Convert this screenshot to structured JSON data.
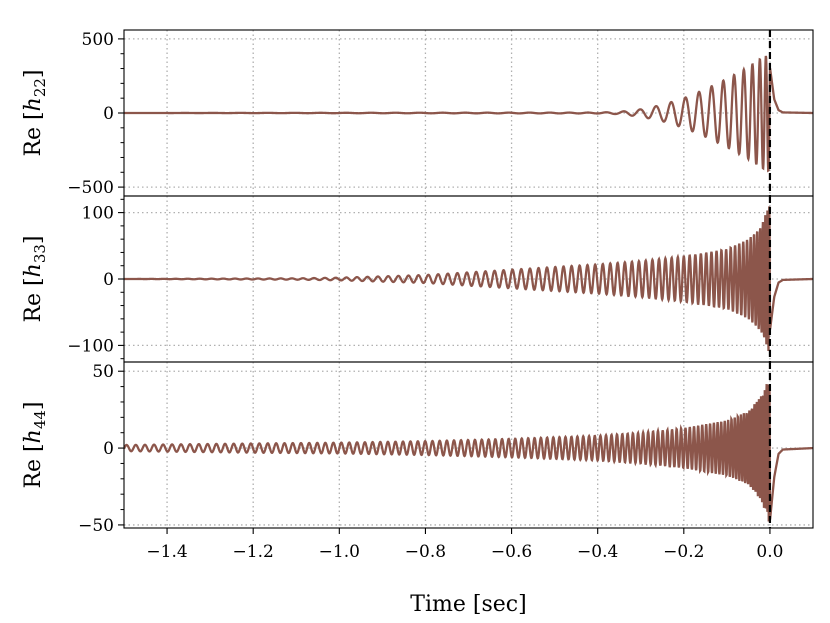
{
  "chart_data": [
    {
      "type": "line",
      "ylabel_prefix": "Re [",
      "ylabel_var": "h",
      "ylabel_sub": "22",
      "ylabel_suffix": "]",
      "ylim": [
        -560,
        560
      ],
      "yticks": [
        -500,
        0,
        500
      ],
      "ytick_labels": [
        "−500",
        "0",
        "500"
      ],
      "xlim": [
        -1.5,
        0.1
      ],
      "grid": true,
      "series": [
        {
          "color": "#8c564b",
          "x": [
            -1.5,
            -0.4,
            -0.35,
            -0.3,
            -0.25,
            -0.2,
            -0.15,
            -0.1,
            -0.05,
            -0.02,
            0.0,
            0.01,
            0.02,
            0.03,
            0.1
          ],
          "envelope": [
            0,
            3,
            8,
            25,
            55,
            100,
            160,
            230,
            310,
            370,
            400,
            120,
            25,
            5,
            0
          ],
          "phase_cycles": 35
        }
      ]
    },
    {
      "type": "line",
      "ylabel_prefix": "Re [",
      "ylabel_var": "h",
      "ylabel_sub": "33",
      "ylabel_suffix": "]",
      "ylim": [
        -125,
        125
      ],
      "yticks": [
        -100,
        0,
        100
      ],
      "ytick_labels": [
        "−100",
        "0",
        "100"
      ],
      "xlim": [
        -1.5,
        0.1
      ],
      "grid": true,
      "series": [
        {
          "color": "#8c564b",
          "x": [
            -1.5,
            -1.1,
            -1.0,
            -0.9,
            -0.8,
            -0.7,
            -0.6,
            -0.5,
            -0.4,
            -0.3,
            -0.2,
            -0.1,
            -0.05,
            -0.02,
            0.0,
            0.01,
            0.02,
            0.03,
            0.1
          ],
          "envelope": [
            0,
            1,
            2,
            4,
            6,
            10,
            14,
            18,
            22,
            27,
            34,
            45,
            60,
            80,
            115,
            40,
            8,
            2,
            0
          ],
          "phase_cycles": 83
        }
      ]
    },
    {
      "type": "line",
      "ylabel_prefix": "Re [",
      "ylabel_var": "h",
      "ylabel_sub": "44",
      "ylabel_suffix": "]",
      "ylim": [
        -52,
        56
      ],
      "yticks": [
        -50,
        0,
        50
      ],
      "ytick_labels": [
        "−50",
        "0",
        "50"
      ],
      "xlim": [
        -1.5,
        0.1
      ],
      "grid": true,
      "series": [
        {
          "color": "#8c564b",
          "x": [
            -1.5,
            -1.2,
            -1.0,
            -0.8,
            -0.6,
            -0.4,
            -0.3,
            -0.2,
            -0.1,
            -0.05,
            -0.02,
            0.0,
            0.01,
            0.02,
            0.03,
            0.1
          ],
          "envelope": [
            2,
            3,
            3.5,
            4.5,
            6,
            8,
            10,
            13,
            18,
            24,
            34,
            50,
            20,
            4,
            1,
            0
          ],
          "phase_cycles": 112
        }
      ]
    }
  ],
  "xticks": [
    -1.4,
    -1.2,
    -1.0,
    -0.8,
    -0.6,
    -0.4,
    -0.2,
    0.0
  ],
  "xtick_labels": [
    "−1.4",
    "−1.2",
    "−1.0",
    "−0.8",
    "−0.6",
    "−0.4",
    "−0.2",
    "0.0"
  ],
  "xlabel": "Time [sec]",
  "merger_time": 0.0
}
